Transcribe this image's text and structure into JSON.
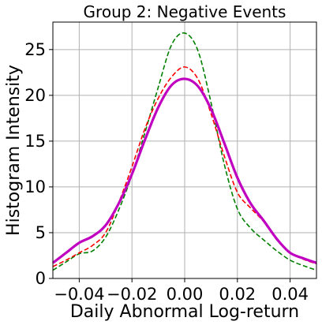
{
  "chart_data": {
    "type": "line",
    "title": "Group 2: Negative Events",
    "xlabel": "Daily Abnormal Log-return",
    "ylabel": "Histogram Intensity",
    "xlim": [
      -0.05,
      0.05
    ],
    "ylim": [
      0,
      28
    ],
    "xticks": [
      -0.04,
      -0.02,
      0.0,
      0.02,
      0.04
    ],
    "xtick_labels": [
      "−0.04",
      "−0.02",
      "0.00",
      "0.02",
      "0.04"
    ],
    "yticks": [
      0,
      5,
      10,
      15,
      20,
      25
    ],
    "ytick_labels": [
      "0",
      "5",
      "10",
      "15",
      "20",
      "25"
    ],
    "grid": true,
    "series": [
      {
        "color": "#008000",
        "style": "dashed",
        "x": [
          -0.05,
          -0.045,
          -0.04,
          -0.035,
          -0.03,
          -0.025,
          -0.02,
          -0.015,
          -0.01,
          -0.005,
          0.0,
          0.005,
          0.01,
          0.015,
          0.02,
          0.025,
          0.03,
          0.035,
          0.04,
          0.045,
          0.05
        ],
        "y": [
          0.9,
          1.8,
          2.7,
          3.0,
          4.5,
          7.5,
          11.3,
          16.0,
          20.9,
          25.5,
          26.8,
          24.9,
          19.2,
          12.5,
          7.6,
          5.5,
          4.2,
          3.0,
          2.0,
          1.4,
          0.9
        ]
      },
      {
        "color": "#ff0000",
        "style": "dashed",
        "x": [
          -0.05,
          -0.045,
          -0.04,
          -0.035,
          -0.03,
          -0.025,
          -0.02,
          -0.015,
          -0.01,
          -0.005,
          0.0,
          0.005,
          0.01,
          0.015,
          0.02,
          0.025,
          0.03,
          0.035,
          0.04,
          0.045,
          0.05
        ],
        "y": [
          1.3,
          2.0,
          2.8,
          3.6,
          5.0,
          8.3,
          12.2,
          16.4,
          19.7,
          22.0,
          23.1,
          21.8,
          18.0,
          13.4,
          9.4,
          7.7,
          6.2,
          4.2,
          2.8,
          2.1,
          1.6
        ]
      },
      {
        "color": "#c000c0",
        "style": "solid",
        "x": [
          -0.05,
          -0.045,
          -0.04,
          -0.035,
          -0.03,
          -0.025,
          -0.02,
          -0.015,
          -0.01,
          -0.005,
          0.0,
          0.005,
          0.01,
          0.015,
          0.02,
          0.025,
          0.03,
          0.035,
          0.04,
          0.045,
          0.05
        ],
        "y": [
          1.7,
          2.8,
          3.9,
          4.6,
          5.8,
          8.2,
          11.4,
          15.2,
          18.7,
          21.1,
          21.8,
          21.0,
          18.5,
          14.8,
          11.0,
          8.2,
          6.3,
          4.3,
          2.8,
          2.2,
          1.7
        ]
      }
    ]
  }
}
